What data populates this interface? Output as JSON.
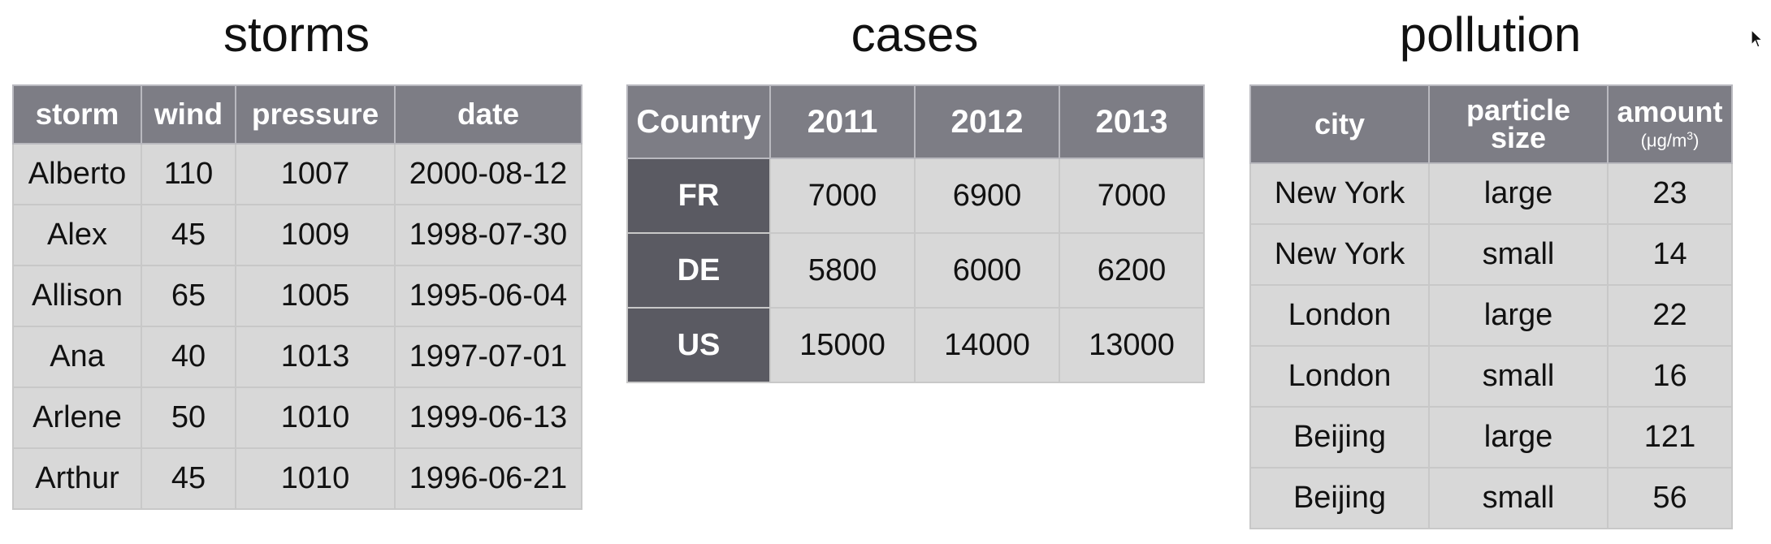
{
  "storms": {
    "title": "storms",
    "columns": [
      "storm",
      "wind",
      "pressure",
      "date"
    ],
    "rows": [
      [
        "Alberto",
        "110",
        "1007",
        "2000-08-12"
      ],
      [
        "Alex",
        "45",
        "1009",
        "1998-07-30"
      ],
      [
        "Allison",
        "65",
        "1005",
        "1995-06-04"
      ],
      [
        "Ana",
        "40",
        "1013",
        "1997-07-01"
      ],
      [
        "Arlene",
        "50",
        "1010",
        "1999-06-13"
      ],
      [
        "Arthur",
        "45",
        "1010",
        "1996-06-21"
      ]
    ]
  },
  "cases": {
    "title": "cases",
    "columns": [
      "Country",
      "2011",
      "2012",
      "2013"
    ],
    "rows": [
      [
        "FR",
        "7000",
        "6900",
        "7000"
      ],
      [
        "DE",
        "5800",
        "6000",
        "6200"
      ],
      [
        "US",
        "15000",
        "14000",
        "13000"
      ]
    ]
  },
  "pollution": {
    "title": "pollution",
    "columns": [
      "city",
      "particle size",
      "amount"
    ],
    "amount_unit": "(μg/m",
    "amount_unit_sup": "3",
    "amount_unit_close": ")",
    "rows": [
      [
        "New York",
        "large",
        "23"
      ],
      [
        "New York",
        "small",
        "14"
      ],
      [
        "London",
        "large",
        "22"
      ],
      [
        "London",
        "small",
        "16"
      ],
      [
        "Beijing",
        "large",
        "121"
      ],
      [
        "Beijing",
        "small",
        "56"
      ]
    ]
  },
  "colors": {
    "header_bg": "#7d7d85",
    "row_header_bg": "#5a5a62",
    "cell_bg": "#d8d8d8"
  },
  "icons": {
    "cursor": "mouse-pointer-icon"
  }
}
